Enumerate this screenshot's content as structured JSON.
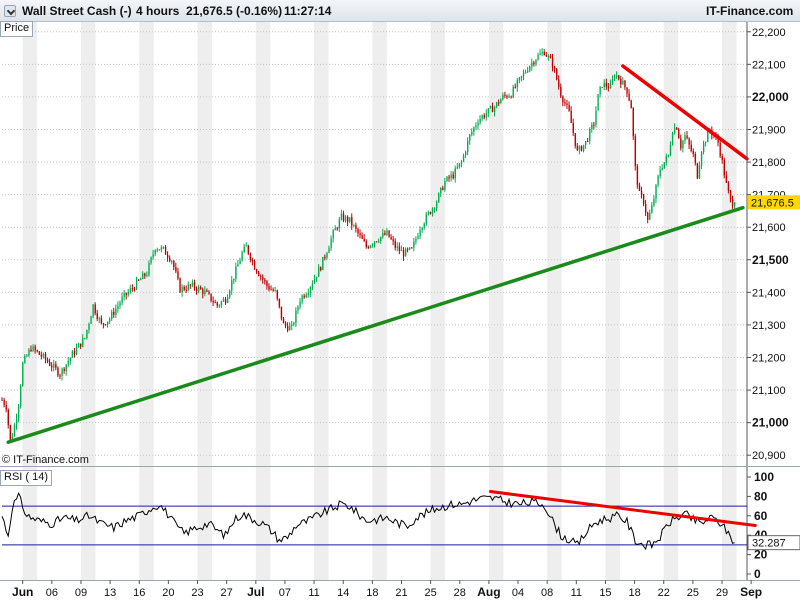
{
  "header": {
    "instrument": "Wall Street Cash (-)",
    "timeframe": "4 hours",
    "quote": "21,676.5 (-0.16%)",
    "time": "11:27:14",
    "brand": "IT-Finance.com"
  },
  "price_panel": {
    "label": "Price",
    "watermark": "© IT-Finance.com"
  },
  "rsi_panel": {
    "label": "RSI ( 14)"
  },
  "colors": {
    "bull": "#00b050",
    "bear": "#c00000",
    "trend_support": "#1a8a1a",
    "trend_resistance": "#ee0000",
    "rsi_line": "#000000",
    "rsi_levels": "#1c1c9a",
    "last_price_bg": "#ffd700",
    "grid_alt": "#eeeeee"
  },
  "icons": {
    "dropdown": "chevron-down-icon"
  },
  "chart_data": [
    {
      "type": "candlestick",
      "title": "Wall Street Cash (-)",
      "ylabel": "Price",
      "ylim": [
        20870,
        22230
      ],
      "yticks": [
        "22,200",
        "22,100",
        "22,000",
        "21,900",
        "21,800",
        "21,700",
        "21,600",
        "21,500",
        "21,400",
        "21,300",
        "21,200",
        "21,100",
        "21,000",
        "20,900"
      ],
      "major_yticks": [
        "22,000",
        "21,500",
        "21,000"
      ],
      "xlabels": [
        "Jun",
        "06",
        "09",
        "13",
        "16",
        "20",
        "23",
        "27",
        "Jul",
        "07",
        "11",
        "14",
        "18",
        "21",
        "25",
        "28",
        "Aug",
        "04",
        "08",
        "11",
        "15",
        "18",
        "22",
        "25",
        "29",
        "Sep"
      ],
      "last_price": "21,676.5",
      "path": [
        [
          0,
          21070
        ],
        [
          2,
          21050
        ],
        [
          4,
          20940
        ],
        [
          6,
          20990
        ],
        [
          8,
          21060
        ],
        [
          10,
          21180
        ],
        [
          14,
          21230
        ],
        [
          20,
          21200
        ],
        [
          28,
          21150
        ],
        [
          34,
          21210
        ],
        [
          40,
          21260
        ],
        [
          44,
          21360
        ],
        [
          48,
          21300
        ],
        [
          52,
          21320
        ],
        [
          58,
          21380
        ],
        [
          64,
          21420
        ],
        [
          70,
          21460
        ],
        [
          74,
          21540
        ],
        [
          78,
          21530
        ],
        [
          82,
          21500
        ],
        [
          86,
          21410
        ],
        [
          92,
          21420
        ],
        [
          98,
          21400
        ],
        [
          104,
          21360
        ],
        [
          108,
          21380
        ],
        [
          112,
          21450
        ],
        [
          116,
          21520
        ],
        [
          118,
          21540
        ],
        [
          122,
          21480
        ],
        [
          128,
          21420
        ],
        [
          132,
          21400
        ],
        [
          136,
          21300
        ],
        [
          140,
          21290
        ],
        [
          144,
          21380
        ],
        [
          148,
          21410
        ],
        [
          154,
          21480
        ],
        [
          160,
          21580
        ],
        [
          164,
          21630
        ],
        [
          168,
          21620
        ],
        [
          172,
          21580
        ],
        [
          176,
          21540
        ],
        [
          180,
          21560
        ],
        [
          186,
          21580
        ],
        [
          190,
          21540
        ],
        [
          194,
          21520
        ],
        [
          198,
          21530
        ],
        [
          202,
          21600
        ],
        [
          206,
          21640
        ],
        [
          210,
          21680
        ],
        [
          214,
          21740
        ],
        [
          218,
          21760
        ],
        [
          222,
          21800
        ],
        [
          226,
          21880
        ],
        [
          230,
          21930
        ],
        [
          234,
          21950
        ],
        [
          238,
          21970
        ],
        [
          242,
          22000
        ],
        [
          246,
          22010
        ],
        [
          250,
          22050
        ],
        [
          254,
          22090
        ],
        [
          258,
          22120
        ],
        [
          262,
          22140
        ],
        [
          266,
          22100
        ],
        [
          270,
          22010
        ],
        [
          274,
          21950
        ],
        [
          278,
          21830
        ],
        [
          282,
          21860
        ],
        [
          286,
          21920
        ],
        [
          288,
          22000
        ],
        [
          290,
          22040
        ],
        [
          294,
          22030
        ],
        [
          296,
          22070
        ],
        [
          298,
          22060
        ],
        [
          302,
          22020
        ],
        [
          304,
          21970
        ],
        [
          306,
          21780
        ],
        [
          308,
          21700
        ],
        [
          310,
          21680
        ],
        [
          312,
          21620
        ],
        [
          314,
          21660
        ],
        [
          318,
          21780
        ],
        [
          322,
          21820
        ],
        [
          324,
          21900
        ],
        [
          326,
          21910
        ],
        [
          328,
          21850
        ],
        [
          330,
          21880
        ],
        [
          334,
          21820
        ],
        [
          336,
          21760
        ],
        [
          338,
          21840
        ],
        [
          342,
          21900
        ],
        [
          346,
          21860
        ],
        [
          348,
          21800
        ],
        [
          350,
          21730
        ],
        [
          352,
          21680
        ],
        [
          354,
          21676.5
        ]
      ],
      "trendlines": [
        {
          "color": "green",
          "from": [
            3,
            20940
          ],
          "to": [
            358,
            21660
          ]
        },
        {
          "color": "red",
          "from": [
            300,
            22095
          ],
          "to": [
            360,
            21810
          ]
        }
      ]
    },
    {
      "type": "line",
      "title": "RSI ( 14)",
      "ylim": [
        0,
        100
      ],
      "yticks": [
        "100",
        "80",
        "60",
        "40",
        "20",
        "0"
      ],
      "levels": [
        70,
        30
      ],
      "last_value": "32.287",
      "path": [
        [
          0,
          60
        ],
        [
          3,
          40
        ],
        [
          5,
          70
        ],
        [
          8,
          80
        ],
        [
          12,
          60
        ],
        [
          18,
          55
        ],
        [
          24,
          52
        ],
        [
          30,
          58
        ],
        [
          36,
          55
        ],
        [
          42,
          60
        ],
        [
          48,
          52
        ],
        [
          54,
          48
        ],
        [
          60,
          55
        ],
        [
          66,
          60
        ],
        [
          72,
          68
        ],
        [
          76,
          72
        ],
        [
          80,
          62
        ],
        [
          84,
          50
        ],
        [
          88,
          42
        ],
        [
          94,
          48
        ],
        [
          100,
          52
        ],
        [
          104,
          45
        ],
        [
          108,
          40
        ],
        [
          112,
          55
        ],
        [
          116,
          62
        ],
        [
          120,
          58
        ],
        [
          126,
          52
        ],
        [
          130,
          45
        ],
        [
          134,
          35
        ],
        [
          138,
          38
        ],
        [
          142,
          50
        ],
        [
          148,
          55
        ],
        [
          154,
          62
        ],
        [
          160,
          68
        ],
        [
          164,
          72
        ],
        [
          168,
          70
        ],
        [
          172,
          62
        ],
        [
          176,
          55
        ],
        [
          180,
          56
        ],
        [
          186,
          58
        ],
        [
          192,
          52
        ],
        [
          196,
          50
        ],
        [
          200,
          58
        ],
        [
          206,
          64
        ],
        [
          210,
          68
        ],
        [
          214,
          70
        ],
        [
          218,
          72
        ],
        [
          222,
          72
        ],
        [
          226,
          75
        ],
        [
          232,
          78
        ],
        [
          238,
          78
        ],
        [
          244,
          74
        ],
        [
          250,
          72
        ],
        [
          256,
          74
        ],
        [
          262,
          72
        ],
        [
          266,
          55
        ],
        [
          270,
          40
        ],
        [
          274,
          35
        ],
        [
          278,
          30
        ],
        [
          282,
          42
        ],
        [
          286,
          52
        ],
        [
          290,
          56
        ],
        [
          294,
          58
        ],
        [
          298,
          60
        ],
        [
          302,
          54
        ],
        [
          306,
          35
        ],
        [
          310,
          30
        ],
        [
          314,
          30
        ],
        [
          318,
          38
        ],
        [
          322,
          52
        ],
        [
          326,
          58
        ],
        [
          330,
          62
        ],
        [
          334,
          56
        ],
        [
          338,
          52
        ],
        [
          342,
          58
        ],
        [
          346,
          55
        ],
        [
          350,
          45
        ],
        [
          354,
          32.3
        ]
      ],
      "trendlines": [
        {
          "color": "red",
          "from": [
            236,
            85
          ],
          "to": [
            364,
            50
          ]
        }
      ]
    }
  ]
}
